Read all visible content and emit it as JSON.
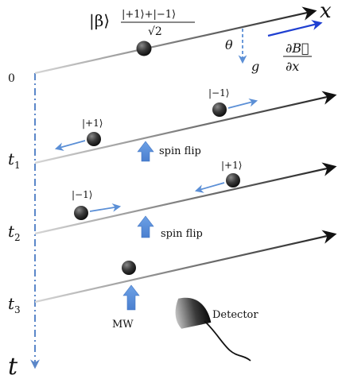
{
  "state_label": "|β⟩",
  "superposition": {
    "numerator": "|+1⟩+|−1⟩",
    "denominator": "√2"
  },
  "x_axis": "x",
  "t_axis": "t",
  "theta": "θ",
  "gravity": "g",
  "gradient": {
    "numerator": "∂B⃗",
    "denominator": "∂x"
  },
  "time_labels": {
    "t0": "0",
    "t1_main": "t",
    "t1_sub": "1",
    "t2_main": "t",
    "t2_sub": "2",
    "t3_main": "t",
    "t3_sub": "3"
  },
  "labels": {
    "minus_one_t1": "|−1⟩",
    "plus_one_t1": "|+1⟩",
    "minus_one_t2": "|−1⟩",
    "plus_one_t2": "|+1⟩",
    "spin_flip_1": "spin flip",
    "spin_flip_2": "spin flip",
    "mw": "MW",
    "detector": "Detector"
  },
  "colors": {
    "accent_blue": "#5b8fd6",
    "gradient_arrow": "#1f3fd1",
    "axis_blue": "#5b87c9",
    "particle": "#2a2a2a"
  }
}
